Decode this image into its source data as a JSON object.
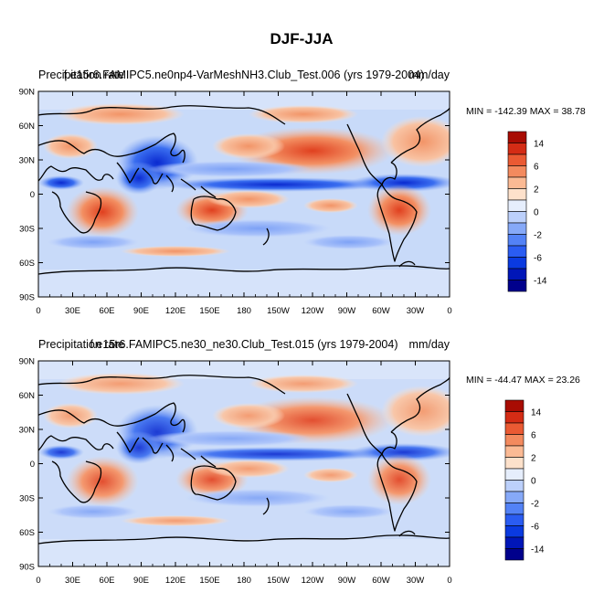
{
  "chart_data": {
    "type": "heatmap",
    "title": "DJF-JJA",
    "panels": [
      {
        "left_title": "Precipitation rate",
        "center_title": "f.e15r6.FAMIPC5.ne0np4-VarMeshNH3.Club_Test.006 (yrs 1979-2004)",
        "right_title": "mm/day",
        "stats": "MIN = -142.39 MAX =  38.78",
        "min": -142.39,
        "max": 38.78
      },
      {
        "left_title": "Precipitation rate",
        "center_title": "f.e15r6.FAMIPC5.ne30_ne30.Club_Test.015 (yrs 1979-2004)",
        "right_title": "mm/day",
        "stats": "MIN = -44.47 MAX =  23.26",
        "min": -44.47,
        "max": 23.26
      }
    ],
    "x_ticks": [
      "0",
      "30E",
      "60E",
      "90E",
      "120E",
      "150E",
      "180",
      "150W",
      "120W",
      "90W",
      "60W",
      "30W",
      "0"
    ],
    "y_ticks": [
      "90N",
      "60N",
      "30N",
      "0",
      "30S",
      "60S",
      "90S"
    ],
    "lon_range": [
      0,
      360
    ],
    "lat_range": [
      -90,
      90
    ],
    "colorbar": {
      "levels": [
        -14,
        -10,
        -6,
        -4,
        -2,
        -1,
        0,
        1,
        2,
        4,
        6,
        10,
        14
      ],
      "labels": [
        "14",
        "6",
        "2",
        "0",
        "-2",
        "-6",
        "-14"
      ],
      "colors": [
        "#00008c",
        "#0016b8",
        "#0a3ae0",
        "#2a5cf2",
        "#5382f6",
        "#86a9f8",
        "#bcd0fb",
        "#e6eefc",
        "#fde1cb",
        "#fbba94",
        "#f38a5e",
        "#ea5a33",
        "#d42c15",
        "#a80c03"
      ]
    }
  }
}
